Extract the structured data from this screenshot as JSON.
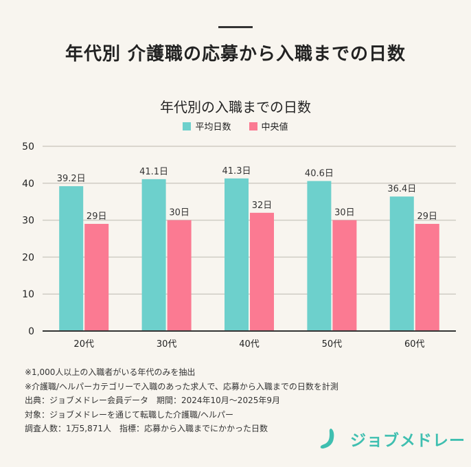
{
  "main_title": "年代別 介護職の応募から入職までの日数",
  "chart_data": {
    "type": "bar",
    "title": "年代別の入職までの日数",
    "categories": [
      "20代",
      "30代",
      "40代",
      "50代",
      "60代"
    ],
    "series": [
      {
        "name": "平均日数",
        "color": "#6dd0cc",
        "values": [
          39.2,
          41.1,
          41.3,
          40.6,
          36.4
        ],
        "labels": [
          "39.2日",
          "41.1日",
          "41.3日",
          "40.6日",
          "36.4日"
        ]
      },
      {
        "name": "中央値",
        "color": "#fb7a92",
        "values": [
          29,
          30,
          32,
          30,
          29
        ],
        "labels": [
          "29日",
          "30日",
          "32日",
          "30日",
          "29日"
        ]
      }
    ],
    "ylim": [
      0,
      50
    ],
    "yticks": [
      0,
      10,
      20,
      30,
      40,
      50
    ],
    "grid": true,
    "legend_position": "top"
  },
  "notes": [
    "※1,000人以上の入職者がいる年代のみを抽出",
    "※介護職/ヘルパーカテゴリーで入職のあった求人で、応募から入職までの日数を計測",
    "出典：ジョブメドレー会員データ　期間：2024年10月～2025年9月",
    "対象：ジョブメドレーを通じて転職した介護職/ヘルパー",
    "調査人数：1万5,871人　指標：応募から入職までにかかった日数"
  ],
  "logo": {
    "text": "ジョブメドレー",
    "color": "#3fbfb0"
  }
}
